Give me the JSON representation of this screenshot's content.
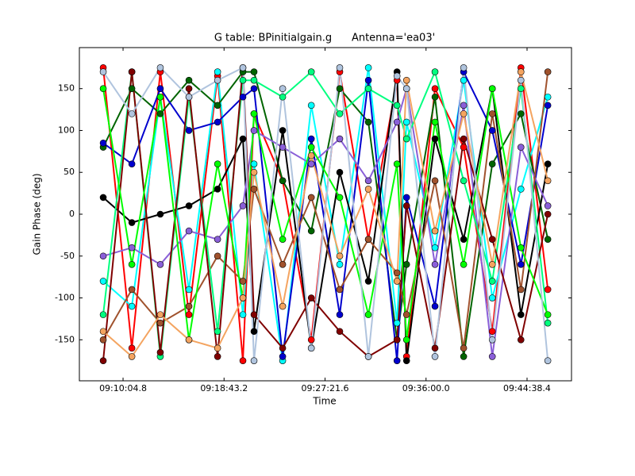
{
  "chart_data": {
    "type": "scatter",
    "title": "G table: BPinitialgain.g      Antenna='ea03'",
    "x_label": "Time",
    "y_label": "Gain Phase (deg)",
    "connect": true,
    "x": [
      32903,
      33050,
      33196,
      33343,
      33490,
      33620,
      33677,
      33824,
      33971,
      34117,
      34264,
      34411,
      34460,
      34606,
      34753,
      34900,
      35047,
      35185
    ],
    "xlim": [
      32780.6,
      35306.6
    ],
    "xticks": [
      {
        "value": 33004.8,
        "label": "09:10:04.8"
      },
      {
        "value": 33523.2,
        "label": "09:18:43.2"
      },
      {
        "value": 34041.6,
        "label": "09:27:21.6"
      },
      {
        "value": 34560.0,
        "label": "09:36:00.0"
      },
      {
        "value": 35078.4,
        "label": "09:44:38.4"
      }
    ],
    "ylim": [
      -199,
      199
    ],
    "yticks": [
      -150,
      -100,
      -50,
      0,
      50,
      100,
      150
    ],
    "series": [
      {
        "color": "#ff0000",
        "values": [
          175,
          -160,
          170,
          -120,
          165,
          -175,
          120,
          40,
          -150,
          170,
          -30,
          160,
          -170,
          150,
          80,
          -140,
          175,
          -90
        ]
      },
      {
        "color": "#00ffff",
        "values": [
          -80,
          -110,
          140,
          -90,
          170,
          -120,
          60,
          -175,
          130,
          -60,
          175,
          -130,
          110,
          -40,
          160,
          -100,
          30,
          140
        ]
      },
      {
        "color": "#006400",
        "values": [
          80,
          150,
          120,
          160,
          130,
          170,
          170,
          40,
          -20,
          150,
          110,
          -150,
          -60,
          140,
          -170,
          60,
          120,
          -30
        ]
      },
      {
        "color": "#0000cd",
        "values": [
          85,
          60,
          150,
          100,
          110,
          140,
          150,
          -170,
          90,
          -120,
          160,
          -175,
          20,
          -110,
          170,
          100,
          -60,
          130
        ]
      },
      {
        "color": "#000000",
        "values": [
          20,
          -10,
          0,
          10,
          30,
          90,
          -140,
          100,
          -160,
          50,
          -80,
          170,
          -175,
          90,
          -30,
          150,
          -120,
          60
        ]
      },
      {
        "color": "#8a5fd8",
        "values": [
          -50,
          -40,
          -60,
          -20,
          -30,
          10,
          100,
          80,
          60,
          90,
          40,
          110,
          150,
          -60,
          130,
          -170,
          80,
          10
        ]
      },
      {
        "color": "#a0522d",
        "values": [
          -150,
          -90,
          -130,
          -110,
          -50,
          -80,
          30,
          -60,
          20,
          -90,
          -30,
          -70,
          -120,
          40,
          -160,
          120,
          -90,
          170
        ]
      },
      {
        "color": "#00ff7f",
        "values": [
          -120,
          170,
          -170,
          140,
          -140,
          160,
          160,
          140,
          170,
          120,
          150,
          130,
          90,
          170,
          40,
          -80,
          150,
          -130
        ]
      },
      {
        "color": "#800000",
        "values": [
          -175,
          170,
          -165,
          150,
          -170,
          175,
          -120,
          -160,
          -100,
          -140,
          -170,
          -150,
          10,
          -160,
          90,
          -30,
          -150,
          0
        ]
      },
      {
        "color": "#00ff00",
        "values": [
          150,
          -60,
          140,
          -150,
          60,
          -100,
          120,
          -30,
          80,
          20,
          -120,
          60,
          -150,
          110,
          -60,
          150,
          -40,
          -120
        ]
      },
      {
        "color": "#f4a460",
        "values": [
          -140,
          -170,
          -120,
          -150,
          -160,
          -100,
          50,
          -110,
          70,
          -50,
          30,
          -80,
          160,
          -20,
          120,
          -60,
          170,
          40
        ]
      },
      {
        "color": "#b0c4de",
        "values": [
          170,
          120,
          175,
          140,
          160,
          175,
          -175,
          150,
          -160,
          175,
          -170,
          165,
          150,
          -170,
          175,
          -150,
          160,
          -175
        ]
      }
    ]
  }
}
